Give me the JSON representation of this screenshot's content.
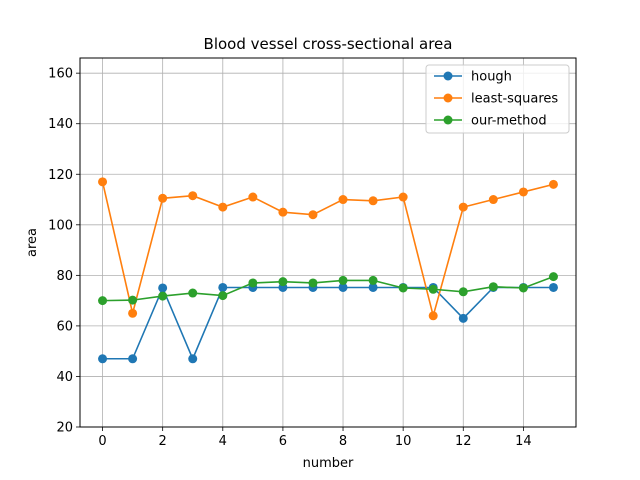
{
  "chart_data": {
    "type": "line",
    "title": "Blood vessel cross-sectional area",
    "xlabel": "number",
    "ylabel": "area",
    "xlim": [
      -0.75,
      15.75
    ],
    "ylim": [
      20,
      166
    ],
    "xticks": [
      0,
      2,
      4,
      6,
      8,
      10,
      12,
      14
    ],
    "yticks": [
      20,
      40,
      60,
      80,
      100,
      120,
      140,
      160
    ],
    "grid": true,
    "legend_position": "top-right",
    "x": [
      0,
      1,
      2,
      3,
      4,
      5,
      6,
      7,
      8,
      9,
      10,
      11,
      12,
      13,
      14,
      15
    ],
    "series": [
      {
        "name": "hough",
        "color": "#1f77b4",
        "values": [
          47,
          47,
          75,
          47,
          75.2,
          75.2,
          75.2,
          75.2,
          75.2,
          75.2,
          75.2,
          75.2,
          63,
          75.2,
          75.2,
          75.2
        ]
      },
      {
        "name": "least-squares",
        "color": "#ff7f0e",
        "values": [
          117,
          65,
          110.5,
          111.5,
          107,
          111,
          105,
          104,
          110,
          109.5,
          111,
          64,
          107,
          110,
          113,
          116
        ]
      },
      {
        "name": "our-method",
        "color": "#2ca02c",
        "values": [
          70,
          70.2,
          71.8,
          73,
          72,
          77,
          77.5,
          77,
          78,
          78,
          75,
          74.5,
          73.5,
          75.5,
          75,
          79.5
        ]
      }
    ]
  }
}
